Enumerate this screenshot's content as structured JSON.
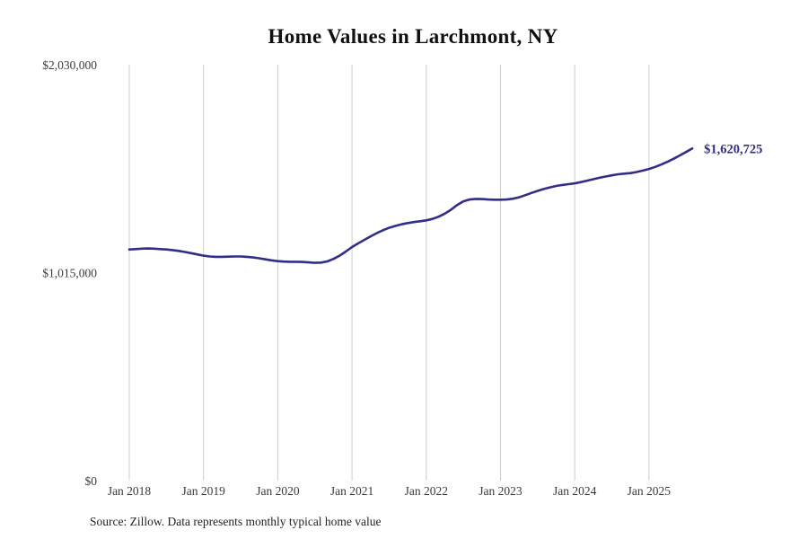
{
  "chart_data": {
    "type": "line",
    "title": "Home Values in Larchmont, NY",
    "source": "Source: Zillow. Data represents monthly typical home value",
    "end_label": "$1,620,725",
    "end_value": 1620725,
    "xlabel": "",
    "ylabel": "",
    "ylim": [
      0,
      2030000
    ],
    "grid": "vertical-only",
    "legend": "none",
    "colors": {
      "line": "#322e87",
      "end_label": "#322e87",
      "grid": "#cccccc",
      "tick_text": "#3b3b3b",
      "title_text": "#111111"
    },
    "y_ticks": [
      {
        "value": 0,
        "label": "$0"
      },
      {
        "value": 1015000,
        "label": "$1,015,000"
      },
      {
        "value": 2030000,
        "label": "$2,030,000"
      }
    ],
    "x_ticks": [
      {
        "year": 2018,
        "label": "Jan 2018"
      },
      {
        "year": 2019,
        "label": "Jan 2019"
      },
      {
        "year": 2020,
        "label": "Jan 2020"
      },
      {
        "year": 2021,
        "label": "Jan 2021"
      },
      {
        "year": 2022,
        "label": "Jan 2022"
      },
      {
        "year": 2023,
        "label": "Jan 2023"
      },
      {
        "year": 2024,
        "label": "Jan 2024"
      },
      {
        "year": 2025,
        "label": "Jan 2025"
      }
    ],
    "series": [
      {
        "name": "Typical home value",
        "x": [
          "2018-01",
          "2018-02",
          "2018-03",
          "2018-04",
          "2018-05",
          "2018-06",
          "2018-07",
          "2018-08",
          "2018-09",
          "2018-10",
          "2018-11",
          "2018-12",
          "2019-01",
          "2019-02",
          "2019-03",
          "2019-04",
          "2019-05",
          "2019-06",
          "2019-07",
          "2019-08",
          "2019-09",
          "2019-10",
          "2019-11",
          "2019-12",
          "2020-01",
          "2020-02",
          "2020-03",
          "2020-04",
          "2020-05",
          "2020-06",
          "2020-07",
          "2020-08",
          "2020-09",
          "2020-10",
          "2020-11",
          "2020-12",
          "2021-01",
          "2021-02",
          "2021-03",
          "2021-04",
          "2021-05",
          "2021-06",
          "2021-07",
          "2021-08",
          "2021-09",
          "2021-10",
          "2021-11",
          "2021-12",
          "2022-01",
          "2022-02",
          "2022-03",
          "2022-04",
          "2022-05",
          "2022-06",
          "2022-07",
          "2022-08",
          "2022-09",
          "2022-10",
          "2022-11",
          "2022-12",
          "2023-01",
          "2023-02",
          "2023-03",
          "2023-04",
          "2023-05",
          "2023-06",
          "2023-07",
          "2023-08",
          "2023-09",
          "2023-10",
          "2023-11",
          "2023-12",
          "2024-01",
          "2024-02",
          "2024-03",
          "2024-04",
          "2024-05",
          "2024-06",
          "2024-07",
          "2024-08",
          "2024-09",
          "2024-10",
          "2024-11",
          "2024-12",
          "2025-01",
          "2025-02",
          "2025-03",
          "2025-04",
          "2025-05",
          "2025-06",
          "2025-07",
          "2025-08"
        ],
        "values": [
          1128000,
          1130000,
          1132000,
          1133000,
          1132000,
          1130000,
          1128000,
          1125000,
          1121000,
          1116000,
          1110000,
          1104000,
          1098000,
          1094000,
          1092000,
          1092000,
          1093000,
          1094000,
          1094000,
          1092000,
          1089000,
          1085000,
          1080000,
          1075000,
          1071000,
          1069000,
          1068000,
          1068000,
          1067000,
          1065000,
          1063000,
          1064000,
          1070000,
          1082000,
          1098000,
          1118000,
          1140000,
          1158000,
          1175000,
          1192000,
          1208000,
          1222000,
          1234000,
          1243000,
          1251000,
          1257000,
          1262000,
          1266000,
          1270000,
          1277000,
          1288000,
          1303000,
          1322000,
          1345000,
          1363000,
          1372000,
          1375000,
          1374000,
          1372000,
          1371000,
          1371000,
          1372000,
          1376000,
          1383000,
          1393000,
          1404000,
          1414000,
          1423000,
          1431000,
          1438000,
          1443000,
          1447000,
          1451000,
          1457000,
          1464000,
          1471000,
          1478000,
          1484000,
          1490000,
          1495000,
          1498000,
          1501000,
          1506000,
          1513000,
          1521000,
          1531000,
          1543000,
          1556000,
          1571000,
          1587000,
          1604000,
          1620725
        ]
      }
    ]
  }
}
